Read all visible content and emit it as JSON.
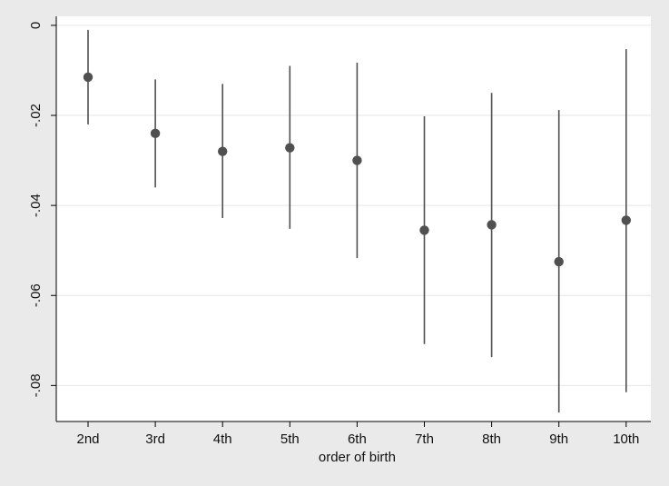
{
  "chart_data": {
    "type": "scatter",
    "subtype": "point-estimate-with-confidence-intervals",
    "title": "",
    "xlabel": "order of birth",
    "ylabel": "",
    "categories": [
      "2nd",
      "3rd",
      "4th",
      "5th",
      "6th",
      "7th",
      "8th",
      "9th",
      "10th"
    ],
    "series": [
      {
        "estimates": [
          -0.0115,
          -0.024,
          -0.028,
          -0.0272,
          -0.03,
          -0.0455,
          -0.0443,
          -0.0525,
          -0.0433
        ],
        "ci_lower": [
          -0.022,
          -0.036,
          -0.0428,
          -0.0452,
          -0.0517,
          -0.0708,
          -0.0737,
          -0.086,
          -0.0815
        ],
        "ci_upper": [
          -0.001,
          -0.012,
          -0.013,
          -0.009,
          -0.0083,
          -0.0202,
          -0.015,
          -0.0188,
          -0.0053
        ]
      }
    ],
    "ylim": [
      -0.088,
      0.002
    ],
    "yticks": [
      0,
      -0.02,
      -0.04,
      -0.06,
      -0.08
    ],
    "ytick_labels": [
      "0",
      "-.02",
      "-.04",
      "-.06",
      "-.08"
    ],
    "grid": "horizontal",
    "legend": "none",
    "colors": {
      "outer_background": "#eaeaea",
      "plot_background": "#ffffff",
      "marker": "#505050",
      "whisker": "#505050",
      "gridline": "#e6e6e6",
      "axis": "#000000"
    }
  }
}
